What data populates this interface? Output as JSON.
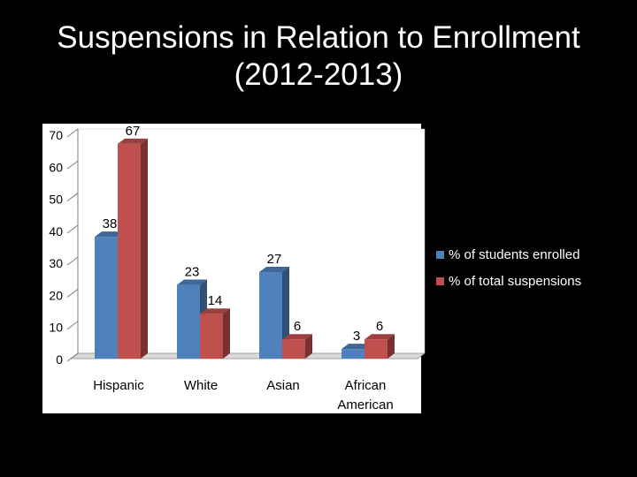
{
  "slide": {
    "title_line1": "Suspensions in Relation to Enrollment",
    "title_line2": "(2012-2013)"
  },
  "chart_data": {
    "type": "bar",
    "categories": [
      "Hispanic",
      "White",
      "Asian",
      "African American"
    ],
    "series": [
      {
        "name": "% of students enrolled",
        "values": [
          38,
          23,
          27,
          3
        ],
        "color": "#4f81bd"
      },
      {
        "name": "% of total suspensions",
        "values": [
          67,
          14,
          6,
          6
        ],
        "color": "#c0504d"
      }
    ],
    "yticks": [
      0,
      10,
      20,
      30,
      40,
      50,
      60,
      70
    ],
    "ylim": [
      0,
      70
    ],
    "grid": false,
    "legend": "right",
    "data_labels": true
  }
}
